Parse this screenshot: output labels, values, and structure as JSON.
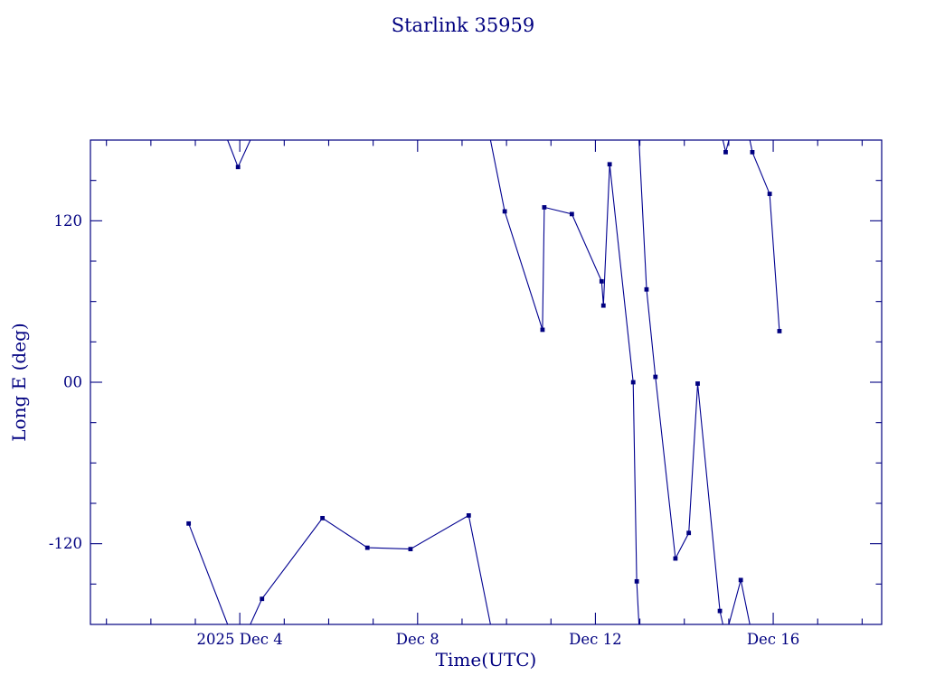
{
  "chart_data": {
    "type": "line",
    "title": "Starlink 35959",
    "xlabel": "Time(UTC)",
    "ylabel": "Long E (deg)",
    "x_units": "day of 2025 December (UTC)",
    "xlim": [
      0.64,
      18.44
    ],
    "ylim": [
      -180,
      180
    ],
    "wrap_at": 180,
    "grid": false,
    "legend": false,
    "marker": "filled-square",
    "x_major_ticks": [
      {
        "value": 4,
        "label": "2025 Dec 4"
      },
      {
        "value": 8,
        "label": "Dec 8"
      },
      {
        "value": 12,
        "label": "Dec 12"
      },
      {
        "value": 16,
        "label": "Dec 16"
      }
    ],
    "x_minor_step": 1,
    "y_major_ticks": [
      {
        "value": 120,
        "label": "120"
      },
      {
        "value": 0,
        "label": "00"
      },
      {
        "value": -120,
        "label": "-120"
      }
    ],
    "y_minor_step": 30,
    "colors": {
      "axis": "#000080",
      "text": "#000080",
      "line": "#000090",
      "marker": "#000080",
      "background": "#ffffff"
    },
    "series": [
      {
        "name": "Long E",
        "points": [
          [
            2.85,
            -105
          ],
          [
            3.96,
            160
          ],
          [
            4.5,
            -161
          ],
          [
            5.86,
            -101
          ],
          [
            6.87,
            -123
          ],
          [
            7.84,
            -124
          ],
          [
            9.15,
            -99
          ],
          [
            9.96,
            127
          ],
          [
            10.81,
            39
          ],
          [
            10.85,
            130
          ],
          [
            11.47,
            125
          ],
          [
            12.14,
            75
          ],
          [
            12.18,
            57
          ],
          [
            12.32,
            162
          ],
          [
            12.85,
            0
          ],
          [
            12.93,
            -148
          ],
          [
            13.15,
            69
          ],
          [
            13.35,
            4
          ],
          [
            13.8,
            -131
          ],
          [
            14.1,
            -112
          ],
          [
            14.3,
            -1
          ],
          [
            14.8,
            -170
          ],
          [
            14.93,
            171
          ],
          [
            15.27,
            -147
          ],
          [
            15.53,
            171
          ],
          [
            15.92,
            140
          ],
          [
            16.14,
            38
          ]
        ]
      }
    ]
  }
}
